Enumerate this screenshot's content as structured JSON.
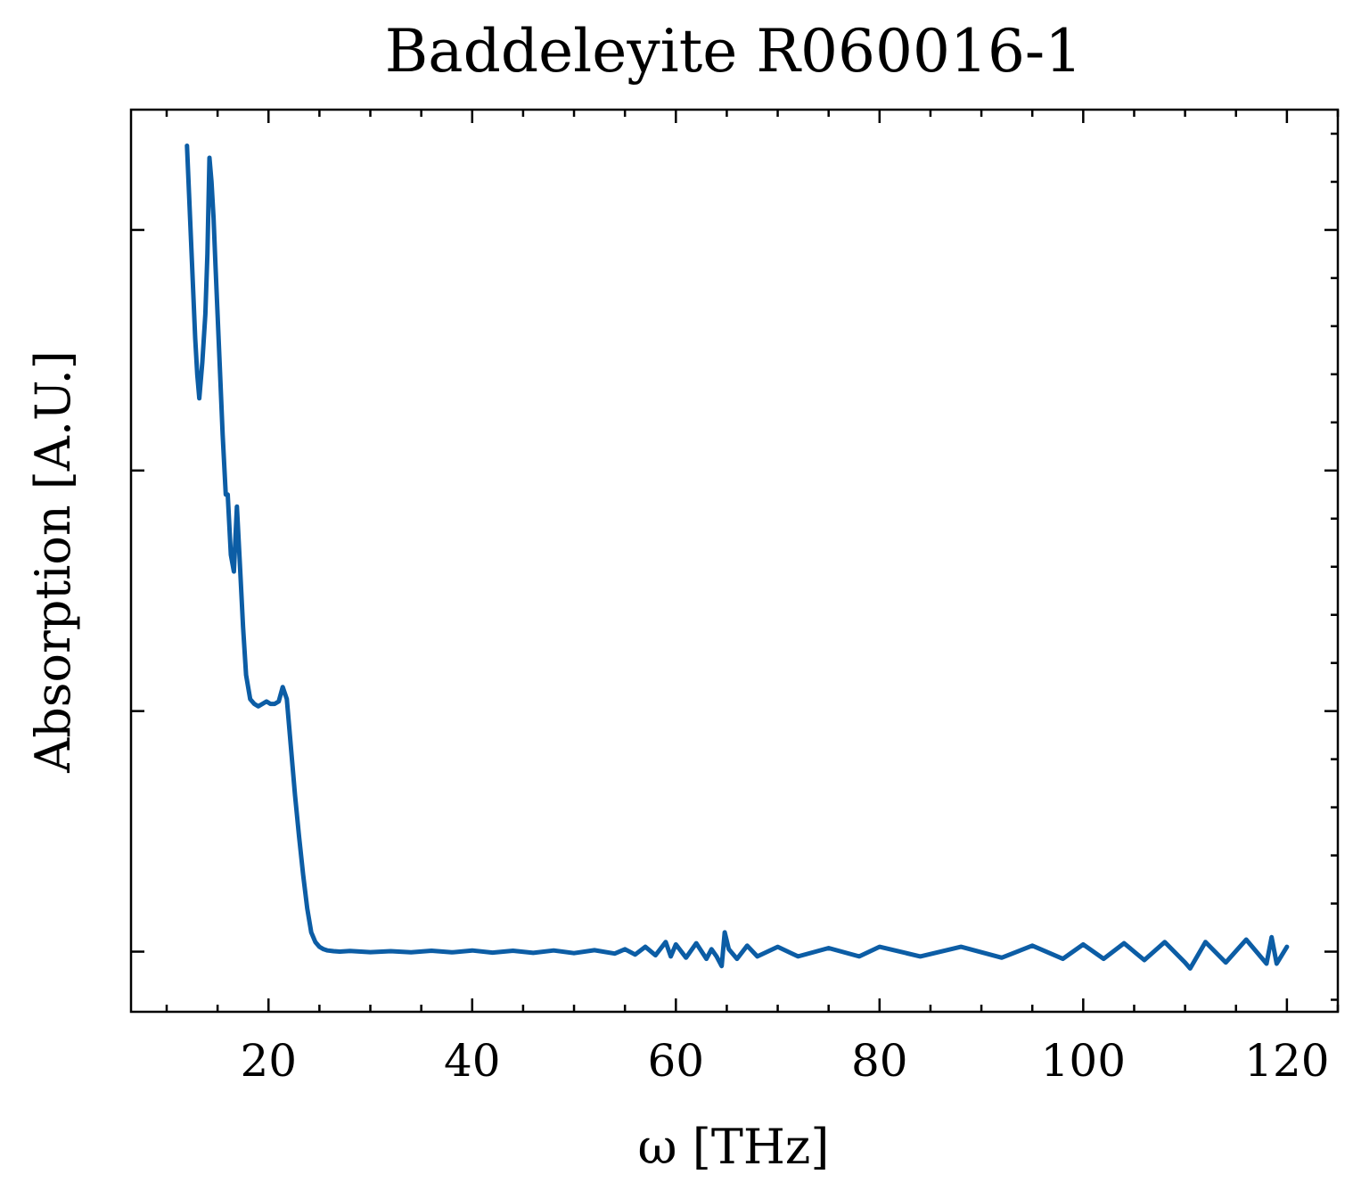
{
  "chart_data": {
    "type": "line",
    "title": "Baddeleyite R060016-1",
    "xlabel": "ω [THz]",
    "ylabel": "Absorption [A.U.]",
    "xlim": [
      6.5,
      125
    ],
    "ylim": [
      -0.25,
      3.5
    ],
    "x_ticks": [
      20,
      40,
      60,
      80,
      100,
      120
    ],
    "x_tick_labels": [
      "20",
      "40",
      "60",
      "80",
      "100",
      "120"
    ],
    "x_minor_step": 5,
    "y_ticks": [
      0,
      1,
      2,
      3
    ],
    "y_minor_step": 0.2,
    "y_tick_labels_shown": false,
    "grid": false,
    "legend": "none",
    "color": "#0c5da5",
    "series": [
      {
        "x": [
          12.0,
          12.2,
          12.4,
          12.6,
          12.8,
          13.0,
          13.2,
          13.5,
          13.8,
          14.0,
          14.2,
          14.4,
          14.6,
          14.8,
          15.0,
          15.2,
          15.5,
          15.8,
          16.0,
          16.3,
          16.6,
          16.9,
          17.2,
          17.5,
          17.8,
          18.2,
          18.6,
          19.0,
          19.4,
          19.8,
          20.2,
          20.6,
          21.0,
          21.4,
          21.8,
          22.2,
          22.6,
          23.0,
          23.4,
          23.8,
          24.2,
          24.6,
          25.0,
          25.4,
          25.8,
          26.4,
          27.0,
          28.0,
          30.0,
          32.0,
          34.0,
          36.0,
          38.0,
          40.0,
          42.0,
          44.0,
          46.0,
          48.0,
          50.0,
          52.0,
          54.0,
          55.0,
          56.0,
          57.0,
          58.0,
          59.0,
          59.5,
          60.0,
          61.0,
          62.0,
          63.0,
          63.5,
          64.0,
          64.5,
          64.8,
          65.2,
          66.0,
          67.0,
          68.0,
          70.0,
          72.0,
          75.0,
          78.0,
          80.0,
          84.0,
          88.0,
          92.0,
          95.0,
          98.0,
          100.0,
          102.0,
          104.0,
          106.0,
          108.0,
          110.0,
          110.5,
          112.0,
          114.0,
          116.0,
          118.0,
          118.5,
          119.0,
          120.0
        ],
        "y": [
          3.35,
          3.15,
          2.95,
          2.75,
          2.55,
          2.4,
          2.3,
          2.45,
          2.65,
          2.9,
          3.3,
          3.2,
          3.05,
          2.85,
          2.65,
          2.45,
          2.15,
          1.9,
          1.9,
          1.65,
          1.58,
          1.85,
          1.6,
          1.35,
          1.15,
          1.05,
          1.03,
          1.02,
          1.03,
          1.04,
          1.03,
          1.03,
          1.04,
          1.1,
          1.05,
          0.85,
          0.65,
          0.48,
          0.32,
          0.18,
          0.08,
          0.04,
          0.02,
          0.01,
          0.005,
          0.002,
          0.0,
          0.003,
          -0.002,
          0.002,
          -0.003,
          0.004,
          -0.003,
          0.005,
          -0.004,
          0.004,
          -0.005,
          0.005,
          -0.006,
          0.006,
          -0.008,
          0.01,
          -0.012,
          0.02,
          -0.015,
          0.04,
          -0.02,
          0.03,
          -0.025,
          0.035,
          -0.03,
          0.01,
          -0.02,
          -0.06,
          0.08,
          0.01,
          -0.03,
          0.025,
          -0.02,
          0.02,
          -0.02,
          0.015,
          -0.02,
          0.02,
          -0.02,
          0.02,
          -0.025,
          0.025,
          -0.03,
          0.03,
          -0.03,
          0.035,
          -0.035,
          0.04,
          -0.045,
          -0.07,
          0.04,
          -0.045,
          0.05,
          -0.05,
          0.06,
          -0.05,
          0.02
        ]
      }
    ]
  }
}
